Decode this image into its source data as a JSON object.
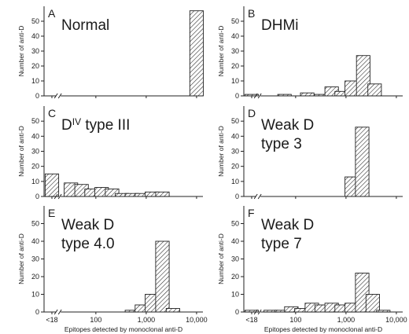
{
  "chart_data": [
    {
      "panel": "A",
      "title": "Normal",
      "type": "bar",
      "bins": [
        {
          "x": 10000,
          "count": 57
        }
      ],
      "ylim": [
        0,
        60
      ],
      "yticks": [
        0,
        10,
        20,
        30,
        40,
        50
      ],
      "show_y_axis": true,
      "show_x_labels": false
    },
    {
      "panel": "B",
      "title": "DHMi",
      "type": "bar",
      "bins": [
        {
          "x": 14,
          "count": 1
        },
        {
          "x": 60,
          "count": 1
        },
        {
          "x": 170,
          "count": 2
        },
        {
          "x": 320,
          "count": 1
        },
        {
          "x": 520,
          "count": 6
        },
        {
          "x": 820,
          "count": 3
        },
        {
          "x": 1300,
          "count": 10
        },
        {
          "x": 2200,
          "count": 27
        },
        {
          "x": 3700,
          "count": 8
        }
      ],
      "ylim": [
        0,
        60
      ],
      "yticks": [
        0,
        10,
        20,
        30,
        40,
        50
      ],
      "show_y_axis": true,
      "show_x_labels": false
    },
    {
      "panel": "C",
      "title_main": "D",
      "title_sup": "IV",
      "title_rest": " type III",
      "type": "bar",
      "bins": [
        {
          "x": 14,
          "count": 15
        },
        {
          "x": 32,
          "count": 9
        },
        {
          "x": 52,
          "count": 8
        },
        {
          "x": 82,
          "count": 5
        },
        {
          "x": 130,
          "count": 6
        },
        {
          "x": 210,
          "count": 5
        },
        {
          "x": 330,
          "count": 2
        },
        {
          "x": 520,
          "count": 2
        },
        {
          "x": 820,
          "count": 2
        },
        {
          "x": 1300,
          "count": 3
        },
        {
          "x": 2100,
          "count": 3
        }
      ],
      "ylim": [
        0,
        60
      ],
      "yticks": [
        0,
        10,
        20,
        30,
        40,
        50
      ],
      "show_y_axis": true,
      "show_x_labels": false
    },
    {
      "panel": "D",
      "title_lines": [
        "Weak D",
        "type 3"
      ],
      "type": "bar",
      "bins": [
        {
          "x": 1300,
          "count": 13
        },
        {
          "x": 2100,
          "count": 46
        }
      ],
      "ylim": [
        0,
        60
      ],
      "yticks": [
        0,
        10,
        20,
        30,
        40,
        50
      ],
      "show_y_axis": true,
      "show_x_labels": false
    },
    {
      "panel": "E",
      "title_lines": [
        "Weak D",
        "type 4.0"
      ],
      "type": "bar",
      "bins": [
        {
          "x": 520,
          "count": 1
        },
        {
          "x": 820,
          "count": 4
        },
        {
          "x": 1300,
          "count": 10
        },
        {
          "x": 2100,
          "count": 40
        },
        {
          "x": 3400,
          "count": 2
        }
      ],
      "ylim": [
        0,
        60
      ],
      "yticks": [
        0,
        10,
        20,
        30,
        40,
        50
      ],
      "show_y_axis": true,
      "show_x_labels": true
    },
    {
      "panel": "F",
      "title_lines": [
        "Weak D",
        "type 7"
      ],
      "type": "bar",
      "bins": [
        {
          "x": 14,
          "count": 1
        },
        {
          "x": 32,
          "count": 1
        },
        {
          "x": 52,
          "count": 1
        },
        {
          "x": 82,
          "count": 3
        },
        {
          "x": 130,
          "count": 2
        },
        {
          "x": 210,
          "count": 5
        },
        {
          "x": 330,
          "count": 4
        },
        {
          "x": 520,
          "count": 5
        },
        {
          "x": 820,
          "count": 4
        },
        {
          "x": 1300,
          "count": 5
        },
        {
          "x": 2100,
          "count": 22
        },
        {
          "x": 3400,
          "count": 10
        },
        {
          "x": 5500,
          "count": 1
        }
      ],
      "ylim": [
        0,
        60
      ],
      "yticks": [
        0,
        10,
        20,
        30,
        40,
        50
      ],
      "show_y_axis": true,
      "show_x_labels": true
    }
  ],
  "labels": {
    "ylabel": "Number of anti-D",
    "xlabel": "Epitopes detected by monoclonal anti-D",
    "x_ticks": [
      "<18",
      "100",
      "1,000",
      "10,000"
    ]
  }
}
